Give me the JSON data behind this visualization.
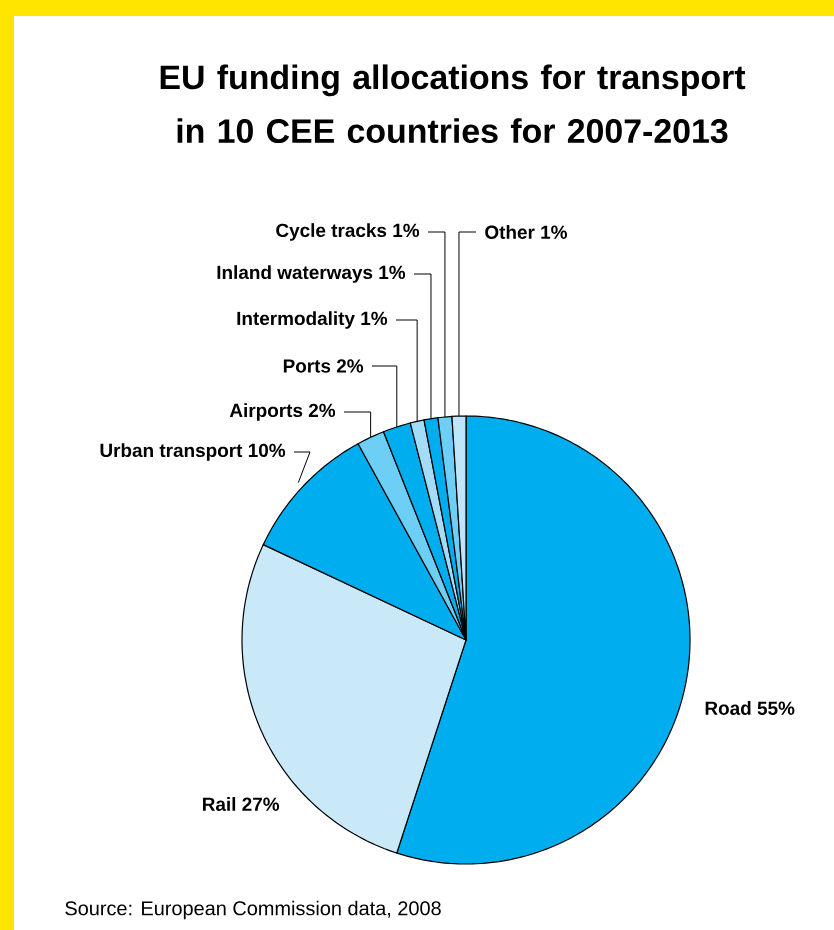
{
  "chart_data": {
    "type": "pie",
    "title": "EU funding allocations for transport in 10 CEE countries for 2007-2013",
    "categories": [
      "Road",
      "Rail",
      "Urban transport",
      "Airports",
      "Ports",
      "Intermodality",
      "Inland waterways",
      "Cycle tracks",
      "Other"
    ],
    "values": [
      55,
      27,
      10,
      2,
      2,
      1,
      1,
      1,
      1
    ],
    "value_labels": [
      "55%",
      "27%",
      "10%",
      "2%",
      "2%",
      "1%",
      "1%",
      "1%",
      "1%"
    ],
    "colors": [
      "#00aeef",
      "#c9e9f9",
      "#00aeef",
      "#6dcff6",
      "#00aeef",
      "#a3dcf7",
      "#00aeef",
      "#6dcff6",
      "#bde6fa"
    ],
    "annotations": [
      "Source: European Commission data, 2008"
    ]
  }
}
